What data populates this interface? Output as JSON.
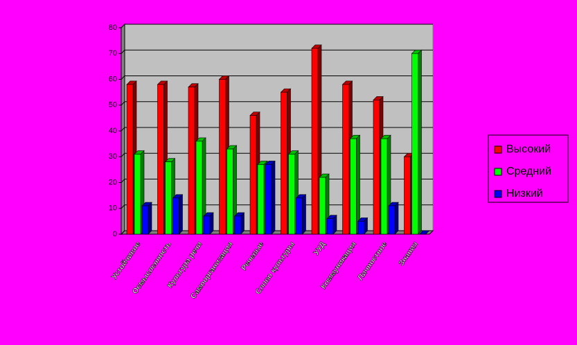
{
  "chart_data": {
    "type": "bar3d",
    "categories": [
      "Устойчивое",
      "Осмысленность",
      "Культура речи",
      "Самоорганизация",
      "Речевые",
      "Слово культуры",
      "УУД",
      "Коммуникация",
      "Личностное",
      "Знания"
    ],
    "series": [
      {
        "name": "Высокий",
        "color": "#ff0000",
        "values": [
          58,
          58,
          57,
          60,
          46,
          55,
          72,
          58,
          52,
          30
        ]
      },
      {
        "name": "Средний",
        "color": "#00ff00",
        "values": [
          31,
          28,
          36,
          33,
          27,
          31,
          22,
          37,
          37,
          70
        ]
      },
      {
        "name": "Низкий",
        "color": "#0000ff",
        "values": [
          11,
          14,
          7,
          7,
          27,
          14,
          6,
          5,
          11,
          0
        ]
      }
    ],
    "ylim": [
      0,
      80
    ],
    "yticks": [
      0,
      10,
      20,
      30,
      40,
      50,
      60,
      70,
      80
    ],
    "grid": true,
    "legend": "right"
  }
}
